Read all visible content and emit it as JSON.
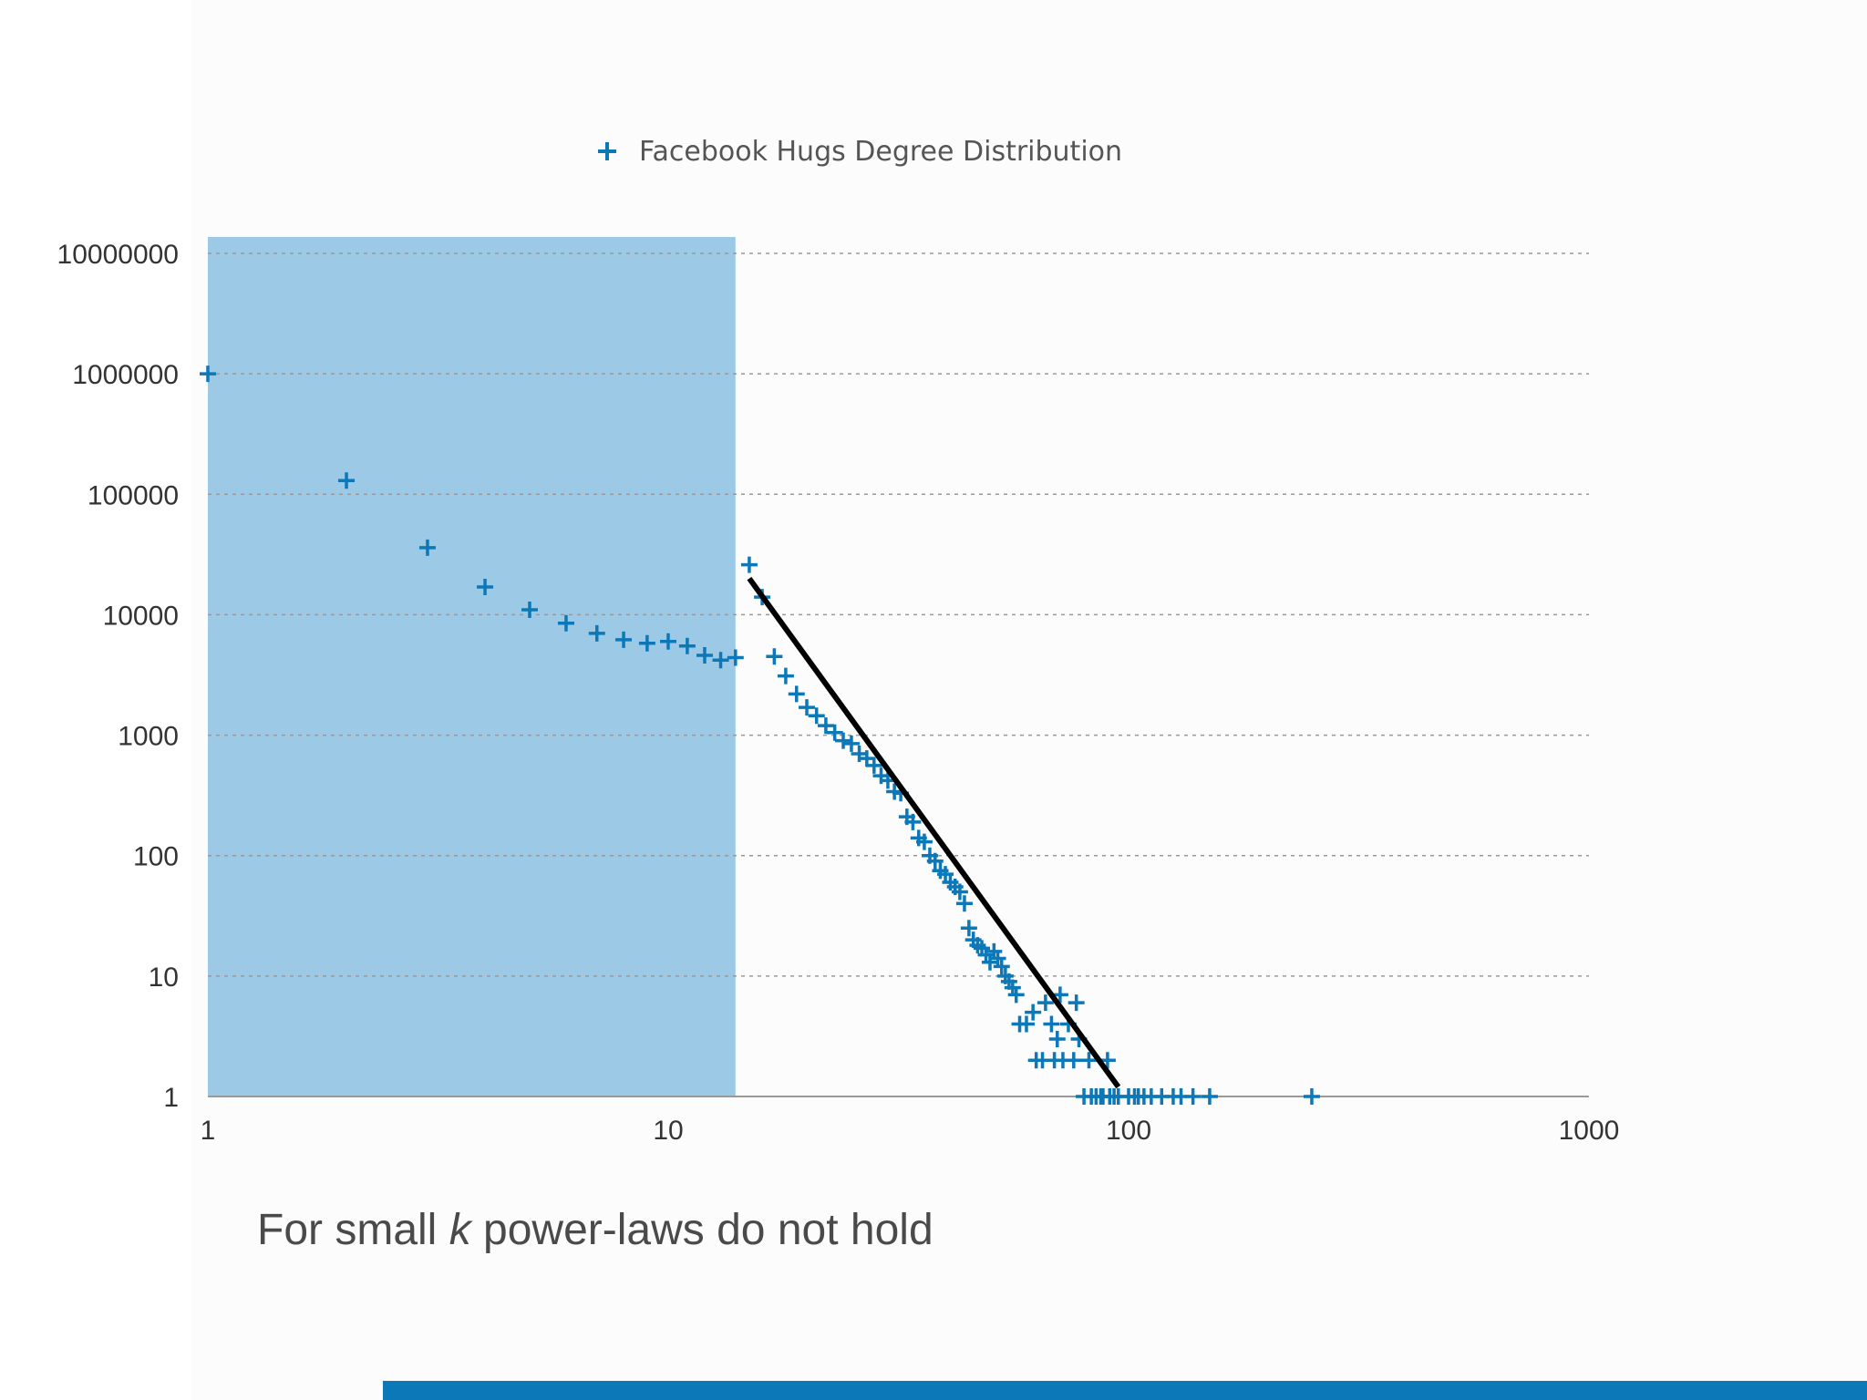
{
  "chart_data": {
    "type": "scatter",
    "title": "",
    "xlabel": "",
    "ylabel": "",
    "x_scale": "log",
    "y_scale": "log",
    "xlim": [
      1,
      1000
    ],
    "ylim": [
      1,
      10000000
    ],
    "x_ticks": [
      "1",
      "10",
      "100",
      "1000"
    ],
    "y_ticks": [
      "1",
      "10",
      "100",
      "1000",
      "10000",
      "100000",
      "1000000",
      "10000000"
    ],
    "grid": "horizontal dotted",
    "legend": {
      "position": "top",
      "marker": "+"
    },
    "highlight_region": {
      "x_from": 1,
      "x_to": 14,
      "color": "#9ccae6"
    },
    "fit_line": {
      "points": [
        [
          15,
          20000
        ],
        [
          95,
          1.2
        ]
      ],
      "color": "#000000"
    },
    "series": [
      {
        "name": "Facebook Hugs Degree Distribution",
        "color": "#0c78b8",
        "marker": "+",
        "points": [
          [
            1,
            1000000
          ],
          [
            2,
            130000
          ],
          [
            3,
            36000
          ],
          [
            4,
            17000
          ],
          [
            5,
            11000
          ],
          [
            6,
            8500
          ],
          [
            7,
            7000
          ],
          [
            8,
            6200
          ],
          [
            9,
            5800
          ],
          [
            10,
            6000
          ],
          [
            11,
            5500
          ],
          [
            12,
            4600
          ],
          [
            13,
            4200
          ],
          [
            14,
            4400
          ],
          [
            15,
            26000
          ],
          [
            16,
            14000
          ],
          [
            17,
            4500
          ],
          [
            18,
            3100
          ],
          [
            19,
            2200
          ],
          [
            20,
            1700
          ],
          [
            21,
            1450
          ],
          [
            22,
            1200
          ],
          [
            23,
            1050
          ],
          [
            24,
            900
          ],
          [
            25,
            850
          ],
          [
            26,
            700
          ],
          [
            27,
            640
          ],
          [
            28,
            560
          ],
          [
            29,
            460
          ],
          [
            30,
            420
          ],
          [
            31,
            340
          ],
          [
            32,
            330
          ],
          [
            33,
            210
          ],
          [
            34,
            190
          ],
          [
            35,
            140
          ],
          [
            36,
            130
          ],
          [
            37,
            100
          ],
          [
            38,
            90
          ],
          [
            39,
            75
          ],
          [
            40,
            70
          ],
          [
            41,
            60
          ],
          [
            42,
            55
          ],
          [
            43,
            50
          ],
          [
            44,
            40
          ],
          [
            45,
            25
          ],
          [
            46,
            20
          ],
          [
            47,
            18
          ],
          [
            48,
            17
          ],
          [
            49,
            15
          ],
          [
            50,
            13
          ],
          [
            51,
            16
          ],
          [
            52,
            14
          ],
          [
            53,
            12
          ],
          [
            54,
            10
          ],
          [
            55,
            9
          ],
          [
            56,
            8
          ],
          [
            57,
            7
          ],
          [
            58,
            4
          ],
          [
            60,
            4
          ],
          [
            62,
            5
          ],
          [
            63,
            2
          ],
          [
            65,
            2
          ],
          [
            66,
            6
          ],
          [
            68,
            4
          ],
          [
            69,
            2
          ],
          [
            70,
            3
          ],
          [
            71,
            7
          ],
          [
            72,
            2
          ],
          [
            74,
            4
          ],
          [
            76,
            2
          ],
          [
            77,
            6
          ],
          [
            78,
            3
          ],
          [
            80,
            1
          ],
          [
            82,
            2
          ],
          [
            83,
            1
          ],
          [
            85,
            1
          ],
          [
            87,
            1
          ],
          [
            88,
            1
          ],
          [
            90,
            2
          ],
          [
            91,
            1
          ],
          [
            93,
            1
          ],
          [
            95,
            1
          ],
          [
            100,
            1
          ],
          [
            103,
            1
          ],
          [
            105,
            1
          ],
          [
            108,
            1
          ],
          [
            112,
            1
          ],
          [
            118,
            1
          ],
          [
            125,
            1
          ],
          [
            130,
            1
          ],
          [
            138,
            1
          ],
          [
            150,
            1
          ],
          [
            250,
            1
          ]
        ]
      }
    ]
  },
  "caption": {
    "text_before": "For small ",
    "k": "k",
    "text_after": " power-laws do not hold"
  },
  "footer": {
    "bar_color": "#0c78b8"
  }
}
